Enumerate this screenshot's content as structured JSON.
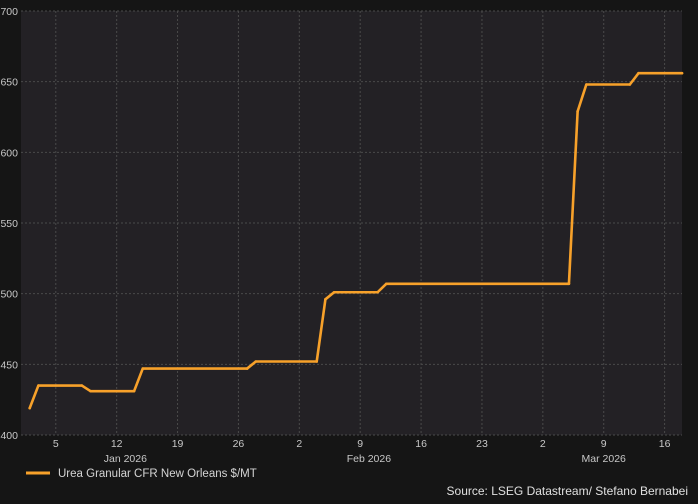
{
  "chart_data": {
    "type": "line",
    "title": "",
    "xlabel": "",
    "ylabel": "",
    "ylim": [
      400,
      700
    ],
    "yticks": [
      400,
      450,
      500,
      550,
      600,
      650,
      700
    ],
    "xlim": [
      "2026-01-01",
      "2026-03-18"
    ],
    "xticks": [
      {
        "date": "2026-01-05",
        "label": "5"
      },
      {
        "date": "2026-01-12",
        "label": "12"
      },
      {
        "date": "2026-01-19",
        "label": "19"
      },
      {
        "date": "2026-01-26",
        "label": "26"
      },
      {
        "date": "2026-02-02",
        "label": "2"
      },
      {
        "date": "2026-02-09",
        "label": "9"
      },
      {
        "date": "2026-02-16",
        "label": "16"
      },
      {
        "date": "2026-02-23",
        "label": "23"
      },
      {
        "date": "2026-03-02",
        "label": "2"
      },
      {
        "date": "2026-03-09",
        "label": "9"
      },
      {
        "date": "2026-03-16",
        "label": "16"
      }
    ],
    "month_labels": [
      {
        "date": "2026-01-13",
        "label": "Jan 2026"
      },
      {
        "date": "2026-02-10",
        "label": "Feb 2026"
      },
      {
        "date": "2026-03-09",
        "label": "Mar 2026"
      }
    ],
    "grid": true,
    "legend_position": "bottom-left",
    "series": [
      {
        "name": "Urea Granular CFR New Orleans $/MT",
        "color": "#f7a12a",
        "points": [
          [
            "2026-01-02",
            419
          ],
          [
            "2026-01-03",
            435
          ],
          [
            "2026-01-08",
            435
          ],
          [
            "2026-01-09",
            431
          ],
          [
            "2026-01-14",
            431
          ],
          [
            "2026-01-15",
            447
          ],
          [
            "2026-01-27",
            447
          ],
          [
            "2026-01-28",
            452
          ],
          [
            "2026-02-04",
            452
          ],
          [
            "2026-02-05",
            496
          ],
          [
            "2026-02-06",
            501
          ],
          [
            "2026-02-11",
            501
          ],
          [
            "2026-02-12",
            507
          ],
          [
            "2026-03-05",
            507
          ],
          [
            "2026-03-06",
            629
          ],
          [
            "2026-03-07",
            648
          ],
          [
            "2026-03-12",
            648
          ],
          [
            "2026-03-13",
            656
          ],
          [
            "2026-03-18",
            656
          ]
        ]
      }
    ],
    "source": "Source: LSEG Datastream/ Stefano Bernabei"
  }
}
